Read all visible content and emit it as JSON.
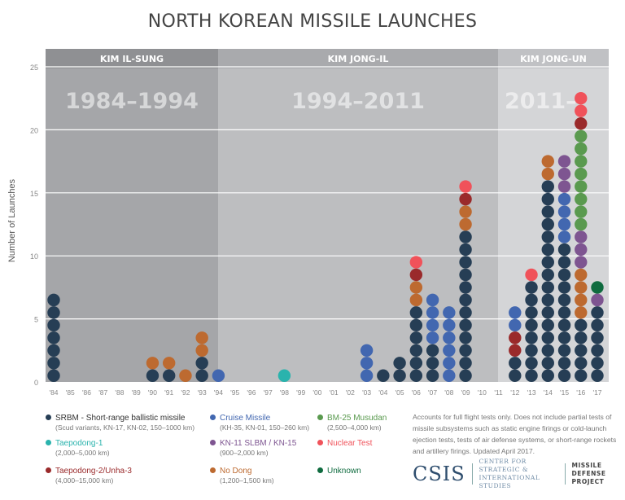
{
  "chart_data": {
    "type": "bar",
    "title": "NORTH KOREAN MISSILE LAUNCHES",
    "ylabel": "Number of Launches",
    "ylim": [
      0,
      25
    ],
    "yticks": [
      "0",
      "5",
      "10",
      "15",
      "20",
      "25"
    ],
    "grid": true,
    "categories": [
      "'84",
      "'85",
      "'86",
      "'87",
      "'88",
      "'89",
      "'90",
      "'91",
      "'92",
      "'93",
      "'94",
      "'95",
      "'96",
      "'97",
      "'98",
      "'99",
      "'00",
      "'01",
      "'02",
      "'03",
      "'04",
      "'05",
      "'06",
      "'07",
      "'08",
      "'09",
      "'10",
      "'11",
      "'12",
      "'13",
      "'14",
      "'15",
      "'16",
      "'17"
    ],
    "eras": [
      {
        "leader": "KIM IL-SUNG",
        "years": "1984–1994",
        "from": "'84",
        "to": "'94"
      },
      {
        "leader": "KIM JONG-IL",
        "years": "1994–2011",
        "from": "'94",
        "to": "'11"
      },
      {
        "leader": "KIM JONG-UN",
        "years": "2011–",
        "from": "'11",
        "to": "'17"
      }
    ],
    "types": {
      "srbm": {
        "name": "SRBM - Short-range ballistic missile",
        "detail": "(Scud variants, KN-17, KN-02, 150–1000 km)",
        "color": "#263e55"
      },
      "cruise": {
        "name": "Cruise Missile",
        "detail": "(KH-35, KN-01, 150–260 km)",
        "color": "#4267b0"
      },
      "musudan": {
        "name": "BM-25 Musudan",
        "detail": "(2,500–4,000 km)",
        "color": "#5a9a4f"
      },
      "tp1": {
        "name": "Taepodong-1",
        "detail": "(2,000–5,000 km)",
        "color": "#2ab3ad"
      },
      "slbm": {
        "name": "KN-11 SLBM / KN-15",
        "detail": "(900–2,000 km)",
        "color": "#7e5591"
      },
      "nuclear": {
        "name": "Nuclear Test",
        "detail": "",
        "color": "#f0525a"
      },
      "tp2": {
        "name": "Taepodong-2/Unha-3",
        "detail": "(4,000–15,000 km)",
        "color": "#9a2a2b"
      },
      "nodong": {
        "name": "No Dong",
        "detail": "(1,200–1,500 km)",
        "color": "#bd6a30"
      },
      "unknown": {
        "name": "Unknown",
        "detail": "",
        "color": "#0f6b3f"
      }
    },
    "stacks": [
      {
        "year": "'84",
        "segments": [
          {
            "type": "srbm",
            "count": 7
          }
        ]
      },
      {
        "year": "'90",
        "segments": [
          {
            "type": "srbm",
            "count": 1
          },
          {
            "type": "nodong",
            "count": 1
          }
        ]
      },
      {
        "year": "'91",
        "segments": [
          {
            "type": "srbm",
            "count": 1
          },
          {
            "type": "nodong",
            "count": 1
          }
        ]
      },
      {
        "year": "'92",
        "segments": [
          {
            "type": "nodong",
            "count": 1
          }
        ]
      },
      {
        "year": "'93",
        "segments": [
          {
            "type": "srbm",
            "count": 2
          },
          {
            "type": "nodong",
            "count": 2
          }
        ]
      },
      {
        "year": "'94",
        "segments": [
          {
            "type": "cruise",
            "count": 1
          }
        ]
      },
      {
        "year": "'98",
        "segments": [
          {
            "type": "tp1",
            "count": 1
          }
        ]
      },
      {
        "year": "'03",
        "segments": [
          {
            "type": "cruise",
            "count": 3
          }
        ]
      },
      {
        "year": "'04",
        "segments": [
          {
            "type": "srbm",
            "count": 1
          }
        ]
      },
      {
        "year": "'05",
        "segments": [
          {
            "type": "srbm",
            "count": 2
          }
        ]
      },
      {
        "year": "'06",
        "segments": [
          {
            "type": "srbm",
            "count": 6
          },
          {
            "type": "nodong",
            "count": 2
          },
          {
            "type": "tp2",
            "count": 1
          },
          {
            "type": "nuclear",
            "count": 1
          }
        ]
      },
      {
        "year": "'07",
        "segments": [
          {
            "type": "srbm",
            "count": 3
          },
          {
            "type": "cruise",
            "count": 4
          }
        ]
      },
      {
        "year": "'08",
        "segments": [
          {
            "type": "cruise",
            "count": 6
          }
        ]
      },
      {
        "year": "'09",
        "segments": [
          {
            "type": "srbm",
            "count": 12
          },
          {
            "type": "nodong",
            "count": 2
          },
          {
            "type": "tp2",
            "count": 1
          },
          {
            "type": "nuclear",
            "count": 1
          }
        ]
      },
      {
        "year": "'12",
        "segments": [
          {
            "type": "srbm",
            "count": 2
          },
          {
            "type": "tp2",
            "count": 2
          },
          {
            "type": "cruise",
            "count": 2
          }
        ]
      },
      {
        "year": "'13",
        "segments": [
          {
            "type": "srbm",
            "count": 8
          },
          {
            "type": "nuclear",
            "count": 1
          }
        ]
      },
      {
        "year": "'14",
        "segments": [
          {
            "type": "srbm",
            "count": 16
          },
          {
            "type": "nodong",
            "count": 2
          }
        ]
      },
      {
        "year": "'15",
        "segments": [
          {
            "type": "srbm",
            "count": 11
          },
          {
            "type": "cruise",
            "count": 4
          },
          {
            "type": "slbm",
            "count": 3
          }
        ]
      },
      {
        "year": "'16",
        "segments": [
          {
            "type": "srbm",
            "count": 5
          },
          {
            "type": "nodong",
            "count": 4
          },
          {
            "type": "slbm",
            "count": 3
          },
          {
            "type": "musudan",
            "count": 8
          },
          {
            "type": "tp2",
            "count": 1
          },
          {
            "type": "nuclear",
            "count": 2
          }
        ]
      },
      {
        "year": "'17",
        "segments": [
          {
            "type": "srbm",
            "count": 6
          },
          {
            "type": "slbm",
            "count": 1
          },
          {
            "type": "unknown",
            "count": 1
          }
        ]
      }
    ]
  },
  "legend_order": [
    [
      "srbm",
      "cruise",
      "musudan"
    ],
    [
      "tp1",
      "slbm",
      "nuclear"
    ],
    [
      "tp2",
      "nodong",
      "unknown"
    ]
  ],
  "note": "Accounts for full flight tests only. Does not include partial tests of missile subsystems such as static engine firings or cold-launch ejection tests, tests of air defense systems, or short-range rockets and artillery firings. Updated April 2017.",
  "logo": {
    "name": "CSIS",
    "org_line1": "CENTER FOR STRATEGIC &",
    "org_line2": "INTERNATIONAL STUDIES",
    "project_line1": "MISSILE DEFENSE",
    "project_line2": "PROJECT"
  }
}
